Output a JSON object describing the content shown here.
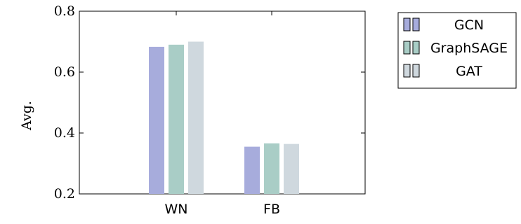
{
  "chart_data": {
    "type": "bar",
    "title": "",
    "xlabel": "",
    "ylabel": "Avg.",
    "ylim": [
      0.2,
      0.8
    ],
    "yticks": [
      "0.2",
      "0.4",
      "0.6",
      "0.8"
    ],
    "categories": [
      "WN",
      "FB"
    ],
    "series": [
      {
        "name": "GCN",
        "values": [
          0.683,
          0.355
        ],
        "color": "#a7acdc"
      },
      {
        "name": "GraphSAGE",
        "values": [
          0.69,
          0.366
        ],
        "color": "#a9cdc6"
      },
      {
        "name": "GAT",
        "values": [
          0.7,
          0.364
        ],
        "color": "#cfd8de"
      }
    ],
    "legend_position": "outside-right",
    "grid": false
  }
}
